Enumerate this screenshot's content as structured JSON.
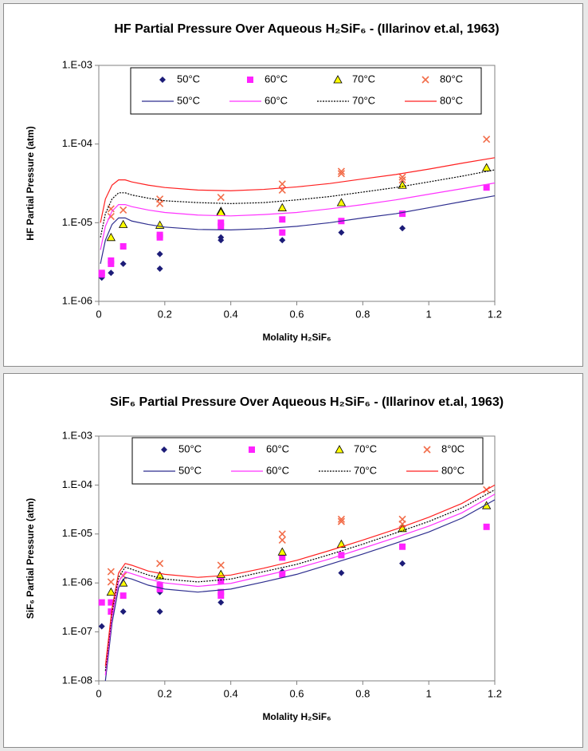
{
  "chart_data": [
    {
      "type": "scatter",
      "title": "HF Partial Pressure Over Aqueous H₂SiF₆ - (Illarinov et.al, 1963)",
      "x_label": "Molality H₂SiF₆",
      "y_label": "HF Partial Pressure (atm)",
      "xlim": [
        0,
        1.2
      ],
      "xticks": [
        0,
        0.2,
        0.4,
        0.6,
        0.8,
        1,
        1.2
      ],
      "ylim": [
        1e-06,
        0.001
      ],
      "ylog": true,
      "yticks": [
        {
          "value": 1e-06,
          "label": "1.E-06"
        },
        {
          "value": 1e-05,
          "label": "1.E-05"
        },
        {
          "value": 0.0001,
          "label": "1.E-04"
        },
        {
          "value": 0.001,
          "label": "1.E-03"
        }
      ],
      "grid": false,
      "legend": "top",
      "series": [
        {
          "name": "50°C",
          "mode": "markers",
          "marker": "diamond",
          "color": "#1c1c78",
          "x": [
            0.009,
            0.037,
            0.074,
            0.185,
            0.185,
            0.37,
            0.37,
            0.556,
            0.735,
            0.92
          ],
          "values": [
            2e-06,
            2.3e-06,
            3e-06,
            4e-06,
            2.6e-06,
            6.5e-06,
            6e-06,
            6e-06,
            7.5e-06,
            8.5e-06
          ]
        },
        {
          "name": "60°C",
          "mode": "markers",
          "marker": "square",
          "color": "#ff22ff",
          "x": [
            0.009,
            0.009,
            0.037,
            0.037,
            0.074,
            0.185,
            0.185,
            0.37,
            0.37,
            0.556,
            0.556,
            0.735,
            0.92,
            1.175
          ],
          "values": [
            2.2e-06,
            2.3e-06,
            3e-06,
            3.3e-06,
            5e-06,
            7e-06,
            6.5e-06,
            1e-05,
            9e-06,
            1.1e-05,
            7.5e-06,
            1.05e-05,
            1.3e-05,
            2.8e-05
          ]
        },
        {
          "name": "70°C",
          "mode": "markers",
          "marker": "triangle",
          "color": "#ffff00",
          "x": [
            0.037,
            0.074,
            0.185,
            0.37,
            0.37,
            0.556,
            0.735,
            0.92,
            1.175
          ],
          "values": [
            6.5e-06,
            9.5e-06,
            9.3e-06,
            1.4e-05,
            1.35e-05,
            1.55e-05,
            1.8e-05,
            3e-05,
            5e-05
          ]
        },
        {
          "name": "80°C",
          "mode": "markers",
          "marker": "x",
          "color": "#f26d4a",
          "x": [
            0.037,
            0.037,
            0.074,
            0.185,
            0.185,
            0.37,
            0.556,
            0.556,
            0.735,
            0.735,
            0.92,
            0.92,
            1.175
          ],
          "values": [
            1.5e-05,
            1.2e-05,
            1.45e-05,
            2e-05,
            1.75e-05,
            2.1e-05,
            3.1e-05,
            2.6e-05,
            4.5e-05,
            4.2e-05,
            3.8e-05,
            3.5e-05,
            0.000115
          ]
        },
        {
          "name": "50°C",
          "mode": "line",
          "color": "#2e2e8f",
          "dash": "solid",
          "x": [
            0.005,
            0.02,
            0.04,
            0.06,
            0.08,
            0.1,
            0.15,
            0.2,
            0.3,
            0.4,
            0.5,
            0.6,
            0.7,
            0.8,
            0.9,
            1.0,
            1.1,
            1.2
          ],
          "values": [
            3e-06,
            6e-06,
            9.5e-06,
            1.15e-05,
            1.15e-05,
            1.05e-05,
            9.5e-06,
            8.8e-06,
            8.2e-06,
            8.1e-06,
            8.4e-06,
            9e-06,
            1e-05,
            1.15e-05,
            1.3e-05,
            1.55e-05,
            1.85e-05,
            2.2e-05
          ]
        },
        {
          "name": "60°C",
          "mode": "line",
          "color": "#ff33ff",
          "dash": "solid",
          "x": [
            0.005,
            0.02,
            0.04,
            0.06,
            0.08,
            0.1,
            0.15,
            0.2,
            0.3,
            0.4,
            0.5,
            0.6,
            0.7,
            0.8,
            0.9,
            1.0,
            1.1,
            1.2
          ],
          "values": [
            4.5e-06,
            9e-06,
            1.4e-05,
            1.7e-05,
            1.7e-05,
            1.6e-05,
            1.45e-05,
            1.35e-05,
            1.25e-05,
            1.22e-05,
            1.27e-05,
            1.35e-05,
            1.5e-05,
            1.7e-05,
            1.95e-05,
            2.3e-05,
            2.7e-05,
            3.2e-05
          ]
        },
        {
          "name": "70°C",
          "mode": "line",
          "color": "#000000",
          "dash": "dotted",
          "x": [
            0.005,
            0.02,
            0.04,
            0.06,
            0.08,
            0.1,
            0.15,
            0.2,
            0.3,
            0.4,
            0.5,
            0.6,
            0.7,
            0.8,
            0.9,
            1.0,
            1.1,
            1.2
          ],
          "values": [
            6.5e-06,
            1.3e-05,
            2e-05,
            2.4e-05,
            2.4e-05,
            2.25e-05,
            2.05e-05,
            1.9e-05,
            1.8e-05,
            1.75e-05,
            1.8e-05,
            1.95e-05,
            2.15e-05,
            2.45e-05,
            2.8e-05,
            3.3e-05,
            3.9e-05,
            4.7e-05
          ]
        },
        {
          "name": "80°C",
          "mode": "line",
          "color": "#ff2020",
          "dash": "solid",
          "x": [
            0.005,
            0.02,
            0.04,
            0.06,
            0.08,
            0.1,
            0.15,
            0.2,
            0.3,
            0.4,
            0.5,
            0.6,
            0.7,
            0.8,
            0.9,
            1.0,
            1.1,
            1.2
          ],
          "values": [
            1e-05,
            2e-05,
            3e-05,
            3.5e-05,
            3.5e-05,
            3.3e-05,
            3e-05,
            2.8e-05,
            2.6e-05,
            2.55e-05,
            2.65e-05,
            2.85e-05,
            3.15e-05,
            3.6e-05,
            4.1e-05,
            4.8e-05,
            5.7e-05,
            6.7e-05
          ]
        }
      ]
    },
    {
      "type": "scatter",
      "title": "SiF₆ Partial Pressure Over Aqueous H₂SiF₆ - (Illarinov et.al, 1963)",
      "x_label": "Molality  H₂SiF₆",
      "y_label": "SiF₆ Partial Pressure (atm)",
      "xlim": [
        0,
        1.2
      ],
      "xticks": [
        0,
        0.2,
        0.4,
        0.6,
        0.8,
        1,
        1.2
      ],
      "ylim": [
        1e-08,
        0.001
      ],
      "ylog": true,
      "yticks": [
        {
          "value": 1e-08,
          "label": "1.E-08"
        },
        {
          "value": 1e-07,
          "label": "1.E-07"
        },
        {
          "value": 1e-06,
          "label": "1.E-06"
        },
        {
          "value": 1e-05,
          "label": "1.E-05"
        },
        {
          "value": 0.0001,
          "label": "1.E-04"
        },
        {
          "value": 0.001,
          "label": "1.E-03"
        }
      ],
      "grid": false,
      "legend": "top",
      "series": [
        {
          "name": "50°C",
          "mode": "markers",
          "marker": "diamond",
          "color": "#1c1c78",
          "x": [
            0.009,
            0.037,
            0.074,
            0.185,
            0.185,
            0.37,
            0.556,
            0.735,
            0.92
          ],
          "values": [
            1.3e-07,
            4e-07,
            2.6e-07,
            6.5e-07,
            2.6e-07,
            4e-07,
            1.7e-06,
            1.6e-06,
            2.5e-06
          ]
        },
        {
          "name": "60°C",
          "mode": "markers",
          "marker": "square",
          "color": "#ff22ff",
          "x": [
            0.009,
            0.037,
            0.037,
            0.074,
            0.185,
            0.185,
            0.37,
            0.37,
            0.37,
            0.556,
            0.556,
            0.735,
            0.92,
            1.175
          ],
          "values": [
            4e-07,
            4e-07,
            2.6e-07,
            5.5e-07,
            9e-07,
            7.5e-07,
            1.1e-06,
            6.5e-07,
            5.5e-07,
            3.3e-06,
            1.5e-06,
            3.7e-06,
            5.5e-06,
            1.4e-05
          ]
        },
        {
          "name": "70°C",
          "mode": "markers",
          "marker": "triangle",
          "color": "#ffff00",
          "x": [
            0.037,
            0.074,
            0.185,
            0.37,
            0.556,
            0.735,
            0.92,
            1.175
          ],
          "values": [
            6.5e-07,
            1e-06,
            1.4e-06,
            1.5e-06,
            4.3e-06,
            6.2e-06,
            1.3e-05,
            3.8e-05
          ]
        },
        {
          "name": "8°0C",
          "mode": "markers",
          "marker": "x",
          "color": "#f26d4a",
          "x": [
            0.037,
            0.037,
            0.074,
            0.185,
            0.37,
            0.556,
            0.556,
            0.735,
            0.735,
            0.92,
            0.92,
            1.175
          ],
          "values": [
            1.7e-06,
            1.05e-06,
            1.4e-06,
            2.5e-06,
            2.3e-06,
            1e-05,
            7.5e-06,
            2e-05,
            1.8e-05,
            2e-05,
            1.6e-05,
            8e-05
          ]
        },
        {
          "name": "50°C",
          "mode": "line",
          "color": "#2e2e8f",
          "dash": "solid",
          "x": [
            0.02,
            0.04,
            0.06,
            0.08,
            0.1,
            0.15,
            0.2,
            0.3,
            0.4,
            0.5,
            0.6,
            0.7,
            0.8,
            0.9,
            1.0,
            1.1,
            1.2
          ],
          "values": [
            1e-08,
            1.5e-07,
            8e-07,
            1.3e-06,
            1.2e-06,
            9e-07,
            7.5e-07,
            6.5e-07,
            7.5e-07,
            1.05e-06,
            1.5e-06,
            2.4e-06,
            3.9e-06,
            6.5e-06,
            1.1e-05,
            2.1e-05,
            5e-05
          ]
        },
        {
          "name": "60°C",
          "mode": "line",
          "color": "#ff33ff",
          "dash": "solid",
          "x": [
            0.02,
            0.04,
            0.06,
            0.08,
            0.1,
            0.15,
            0.2,
            0.3,
            0.4,
            0.5,
            0.6,
            0.7,
            0.8,
            0.9,
            1.0,
            1.1,
            1.2
          ],
          "values": [
            1.3e-08,
            2e-07,
            1.05e-06,
            1.7e-06,
            1.55e-06,
            1.2e-06,
            1e-06,
            8.5e-07,
            9.8e-07,
            1.4e-06,
            2e-06,
            3.1e-06,
            5.1e-06,
            8.5e-06,
            1.45e-05,
            2.7e-05,
            6.5e-05
          ]
        },
        {
          "name": "70°C",
          "mode": "line",
          "color": "#000000",
          "dash": "dotted",
          "x": [
            0.02,
            0.04,
            0.06,
            0.08,
            0.1,
            0.15,
            0.2,
            0.3,
            0.4,
            0.5,
            0.6,
            0.7,
            0.8,
            0.9,
            1.0,
            1.1,
            1.2
          ],
          "values": [
            1.6e-08,
            2.5e-07,
            1.3e-06,
            2.1e-06,
            1.9e-06,
            1.45e-06,
            1.2e-06,
            1.05e-06,
            1.2e-06,
            1.7e-06,
            2.4e-06,
            3.8e-06,
            6.2e-06,
            1.05e-05,
            1.8e-05,
            3.4e-05,
            8e-05
          ]
        },
        {
          "name": "80°C",
          "mode": "line",
          "color": "#ff2020",
          "dash": "solid",
          "x": [
            0.02,
            0.04,
            0.06,
            0.08,
            0.1,
            0.15,
            0.2,
            0.3,
            0.4,
            0.5,
            0.6,
            0.7,
            0.8,
            0.9,
            1.0,
            1.1,
            1.2
          ],
          "values": [
            2e-08,
            3e-07,
            1.6e-06,
            2.5e-06,
            2.3e-06,
            1.75e-06,
            1.5e-06,
            1.3e-06,
            1.45e-06,
            2e-06,
            2.9e-06,
            4.6e-06,
            7.5e-06,
            1.25e-05,
            2.2e-05,
            4.2e-05,
            0.0001
          ]
        }
      ]
    }
  ]
}
